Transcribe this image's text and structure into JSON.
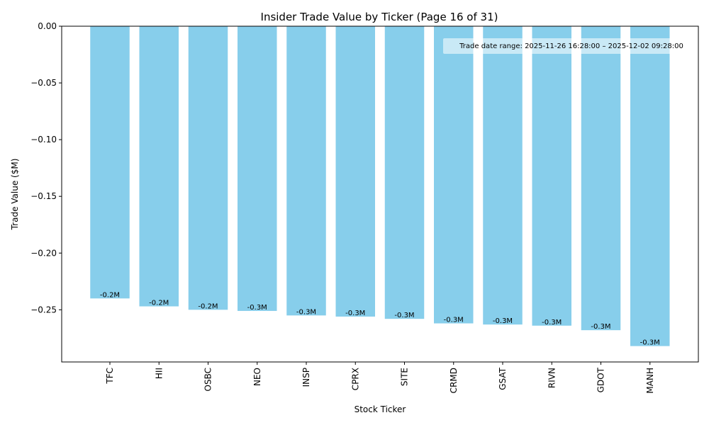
{
  "chart_data": {
    "type": "bar",
    "title": "Insider Trade Value by Ticker (Page 16 of 31)",
    "xlabel": "Stock Ticker",
    "ylabel": "Trade Value ($M)",
    "categories": [
      "TFC",
      "HII",
      "OSBC",
      "NEO",
      "INSP",
      "CPRX",
      "SITE",
      "CRMD",
      "GSAT",
      "RIVN",
      "GDOT",
      "MANH"
    ],
    "values": [
      -0.24,
      -0.247,
      -0.25,
      -0.251,
      -0.255,
      -0.256,
      -0.258,
      -0.262,
      -0.263,
      -0.264,
      -0.268,
      -0.282
    ],
    "data_labels": [
      "-0.2M",
      "-0.2M",
      "-0.2M",
      "-0.3M",
      "-0.3M",
      "-0.3M",
      "-0.3M",
      "-0.3M",
      "-0.3M",
      "-0.3M",
      "-0.3M",
      "-0.3M"
    ],
    "ylim": [
      -0.296,
      0.0
    ],
    "yticks": [
      0.0,
      -0.05,
      -0.1,
      -0.15,
      -0.2,
      -0.25
    ],
    "ytick_labels": [
      "0.00",
      "−0.05",
      "−0.10",
      "−0.15",
      "−0.20",
      "−0.25"
    ],
    "xtick_rotation": "vertical",
    "grid": false,
    "bar_color": "#87CEEB",
    "annotation": {
      "text": "Trade date range: 2025-11-26 16:28:00 – 2025-12-02 09:28:00",
      "placement": "top-right"
    }
  }
}
